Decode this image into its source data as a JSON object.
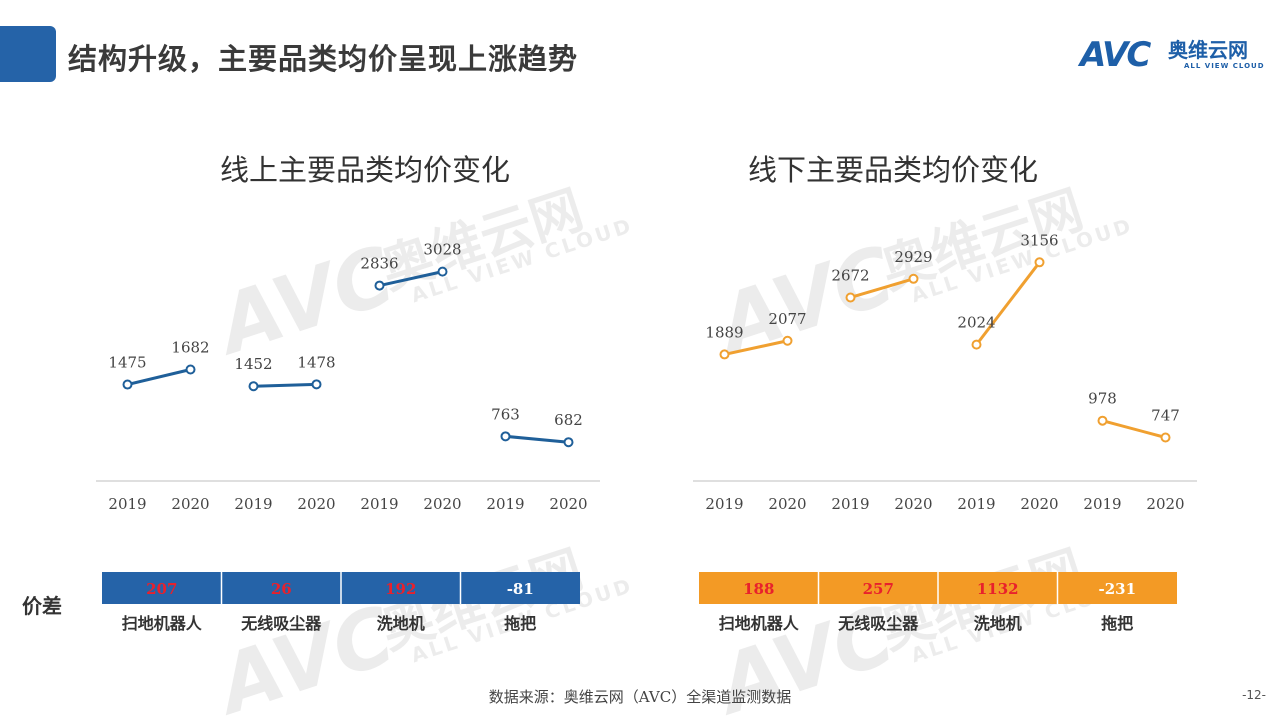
{
  "page_title": "结构升级，主要品类均价呈现上涨趋势",
  "logo": {
    "text": "AVC",
    "cn": "奥维云网",
    "en": "ALL VIEW CLOUD",
    "color": "#1e5fa8"
  },
  "watermark": {
    "text": "AVC",
    "cn": "奥维云网",
    "en": "ALL VIEW CLOUD"
  },
  "price_diff_label": "价差",
  "source": "数据来源：奥维云网（AVC）全渠道监测数据",
  "page_number": "-12-",
  "chart_data": [
    {
      "type": "line",
      "title": "线上主要品类均价变化",
      "color": "#1f5f99",
      "bar_color": "#2563a8",
      "categories": [
        "扫地机器人",
        "无线吸尘器",
        "洗地机",
        "拖把"
      ],
      "series": [
        {
          "category": "扫地机器人",
          "x": [
            "2019",
            "2020"
          ],
          "values": [
            1475,
            1682
          ],
          "labels": [
            "1475",
            "1682"
          ],
          "diff": "207"
        },
        {
          "category": "无线吸尘器",
          "x": [
            "2019",
            "2020"
          ],
          "values": [
            1452,
            1478
          ],
          "labels": [
            "1452",
            "1478"
          ],
          "diff": "26"
        },
        {
          "category": "洗地机",
          "x": [
            "2019",
            "2020"
          ],
          "values": [
            2836,
            3028
          ],
          "labels": [
            "2836",
            "3028"
          ],
          "diff": "192"
        },
        {
          "category": "拖把",
          "x": [
            "2019",
            "2020"
          ],
          "values": [
            763,
            682
          ],
          "labels": [
            "763",
            "682"
          ],
          "diff": "-81"
        }
      ]
    },
    {
      "type": "line",
      "title": "线下主要品类均价变化",
      "color": "#f0a030",
      "bar_color": "#f39a25",
      "categories": [
        "扫地机器人",
        "无线吸尘器",
        "洗地机",
        "拖把"
      ],
      "series": [
        {
          "category": "扫地机器人",
          "x": [
            "2019",
            "2020"
          ],
          "values": [
            1889,
            2077
          ],
          "labels": [
            "1889",
            "2077"
          ],
          "diff": "188"
        },
        {
          "category": "无线吸尘器",
          "x": [
            "2019",
            "2020"
          ],
          "values": [
            2672,
            2929
          ],
          "labels": [
            "2672",
            "2929"
          ],
          "diff": "257"
        },
        {
          "category": "洗地机",
          "x": [
            "2019",
            "2020"
          ],
          "values": [
            2024,
            3156
          ],
          "labels": [
            "2024",
            "3156"
          ],
          "diff": "1132"
        },
        {
          "category": "拖把",
          "x": [
            "2019",
            "2020"
          ],
          "values": [
            978,
            747
          ],
          "labels": [
            "978",
            "747"
          ],
          "diff": "-231"
        }
      ]
    }
  ],
  "colors": {
    "positive_diff": "#e8212c",
    "negative_diff": "#ffffff",
    "axis": "#bfbfbf"
  }
}
